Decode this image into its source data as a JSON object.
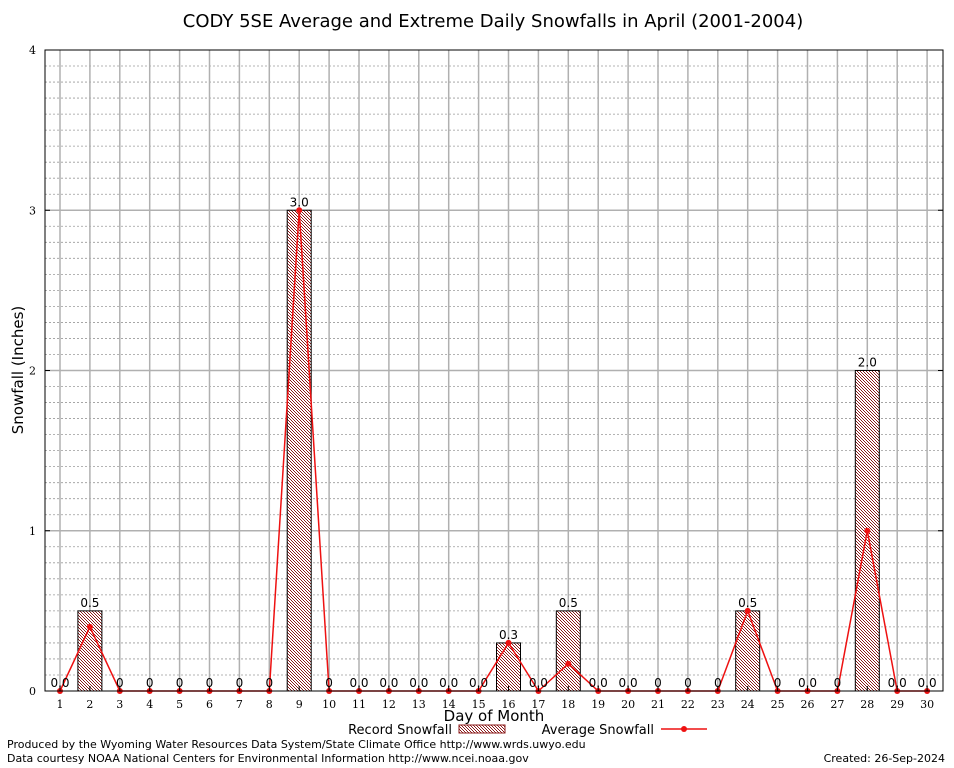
{
  "chart_data": {
    "type": "bar",
    "title": "CODY 5SE Average and Extreme Daily Snowfalls in April (2001-2004)",
    "xlabel": "Day of Month",
    "ylabel": "Snowfall (Inches)",
    "ylim": [
      0,
      4
    ],
    "yticks": [
      "0",
      "1",
      "2",
      "3",
      "4"
    ],
    "categories": [
      "1",
      "2",
      "3",
      "4",
      "5",
      "6",
      "7",
      "8",
      "9",
      "10",
      "11",
      "12",
      "13",
      "14",
      "15",
      "16",
      "17",
      "18",
      "19",
      "20",
      "21",
      "22",
      "23",
      "24",
      "25",
      "26",
      "27",
      "28",
      "29",
      "30"
    ],
    "series": [
      {
        "name": "Record Snowfall",
        "kind": "bar",
        "color": "#7a0000",
        "values": [
          0,
          0.5,
          0,
          0,
          0,
          0,
          0,
          0,
          3.0,
          0,
          0,
          0,
          0,
          0,
          0,
          0.3,
          0,
          0.5,
          0,
          0,
          0,
          0,
          0,
          0.5,
          0,
          0,
          0,
          2.0,
          0,
          0
        ],
        "labels": [
          "0.0",
          "0.5",
          "0",
          "0",
          "0",
          "0",
          "0",
          "0",
          "3.0",
          "0",
          "0.0",
          "0.0",
          "0.0",
          "0.0",
          "0.0",
          "0.3",
          "0.0",
          "0.5",
          "0.0",
          "0.0",
          "0",
          "0",
          "0",
          "0.5",
          "0",
          "0.0",
          "0",
          "2.0",
          "0.0",
          "0.0"
        ]
      },
      {
        "name": "Average Snowfall",
        "kind": "line",
        "color": "#ee1111",
        "values": [
          0,
          0.4,
          0,
          0,
          0,
          0,
          0,
          0,
          3.0,
          0,
          0,
          0,
          0,
          0,
          0,
          0.3,
          0,
          0.17,
          0,
          0,
          0,
          0,
          0,
          0.5,
          0,
          0,
          0,
          1.0,
          0,
          0
        ]
      }
    ],
    "grid": true,
    "legend_position": "bottom-center"
  },
  "footer": {
    "produced_by": "Produced by the Wyoming Water Resources Data System/State Climate Office http://www.wrds.uwyo.edu",
    "courtesy": "Data courtesy NOAA National Centers for Environmental Information http://www.ncei.noaa.gov",
    "created": "Created:  26-Sep-2024"
  }
}
